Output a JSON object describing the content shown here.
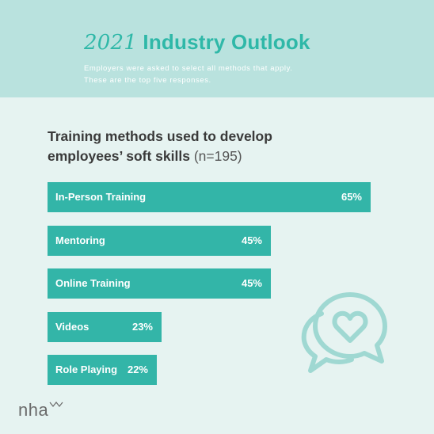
{
  "header": {
    "title_year": "2021",
    "title_rest": "Industry Outlook",
    "subtitle_line1": "Employers were asked to select all methods that apply.",
    "subtitle_line2": "These are the top five responses."
  },
  "chart_title": {
    "main_line1": "Training methods used to develop",
    "main_line2": "employees’ soft skills",
    "sample": "(n=195)"
  },
  "chart_data": {
    "type": "bar",
    "orientation": "horizontal",
    "title": "Training methods used to develop employees’ soft skills (n=195)",
    "categories": [
      "In-Person Training",
      "Mentoring",
      "Online Training",
      "Videos",
      "Role Playing"
    ],
    "values": [
      65,
      45,
      45,
      23,
      22
    ],
    "value_labels": [
      "65%",
      "45%",
      "45%",
      "23%",
      "22%"
    ],
    "unit": "%",
    "xlabel": "",
    "ylabel": "",
    "grid": false,
    "bar_color": "#33b5a8"
  },
  "logo": {
    "text": "nha",
    "icon": "nha-chevron-logo-icon"
  },
  "decoration": {
    "icon": "chat-bubbles-heart-icon"
  },
  "colors": {
    "header_bg": "#b9e2de",
    "page_bg": "#e6f3f1",
    "accent": "#2fb8a8",
    "bar": "#33b5a8",
    "icon_stroke": "#9fd8d2"
  }
}
